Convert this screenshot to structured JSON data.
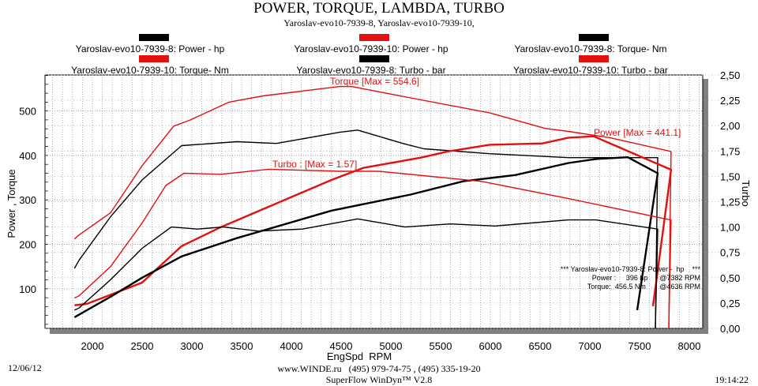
{
  "header": {
    "title": "POWER, TORQUE, LAMBDA, TURBO",
    "subtitle": "Yaroslav-evo10-7939-8, Yaroslav-evo10-7939-10,"
  },
  "legend": [
    {
      "label": "Yaroslav-evo10-7939-8: Power -  hp",
      "color": "#000000"
    },
    {
      "label": "Yaroslav-evo10-7939-10: Power -  hp",
      "color": "#e31010"
    },
    {
      "label": "Yaroslav-evo10-7939-8: Torque-  Nm",
      "color": "#000000"
    },
    {
      "label": "Yaroslav-evo10-7939-10: Torque-  Nm",
      "color": "#e31010"
    },
    {
      "label": "Yaroslav-evo10-7939-8: Turbo - bar",
      "color": "#000000"
    },
    {
      "label": "Yaroslav-evo10-7939-10: Turbo - bar",
      "color": "#e31010"
    }
  ],
  "annotations": {
    "torque_max": "Torque [Max = 554.6]",
    "power_max": "Power  [Max = 441.1]",
    "turbo_max": "Turbo : [Max = 1.57]",
    "info_line1": "*** Yaroslav-evo10-7939-8: Power -  hp    ***",
    "info_line2": "Power :     396 hp      @7382 RPM",
    "info_line3": "Torque:  456.5 Nm       @4636 RPM"
  },
  "footer": {
    "date": "12/06/12",
    "contact": "www.WINDE.ru   (495) 979-74-75 , (495) 335-19-20",
    "software": "SuperFlow WinDyn™ V2.8",
    "time": "19:14:22"
  },
  "chart_data": {
    "type": "line",
    "title": "POWER, TORQUE, LAMBDA, TURBO",
    "xlabel": "EngSpd  RPM",
    "ylabel": "Power , Torque",
    "y2label": "Turbo",
    "xlim": [
      1524,
      8135
    ],
    "ylim": [
      11,
      581
    ],
    "y2lim": [
      0,
      2.5
    ],
    "grid": true,
    "x_ticks": [
      "2000",
      "2500",
      "3000",
      "3500",
      "4000",
      "4500",
      "5000",
      "5500",
      "6000",
      "6500",
      "7000",
      "7500",
      "8000"
    ],
    "y_ticks": [
      "100",
      "200",
      "300",
      "400",
      "500"
    ],
    "y2_ticks": [
      "0,00",
      "0,25",
      "0,50",
      "0,75",
      "1,00",
      "1,25",
      "1,50",
      "1,75",
      "2,00",
      "2,25",
      "2,50"
    ],
    "series": [
      {
        "name": "Yaroslav-evo10-7939-10: Torque-  Nm",
        "color": "#e31010",
        "axis": "left",
        "width": 1.4,
        "points": [
          [
            1820,
            212
          ],
          [
            1865,
            221
          ],
          [
            2183,
            271
          ],
          [
            2500,
            377
          ],
          [
            2817,
            466
          ],
          [
            2976,
            479
          ],
          [
            3373,
            520
          ],
          [
            3714,
            534
          ],
          [
            4484,
            555
          ],
          [
            4603,
            555
          ],
          [
            5302,
            525
          ],
          [
            5992,
            496
          ],
          [
            6548,
            461
          ],
          [
            6786,
            454
          ],
          [
            7200,
            440
          ],
          [
            7817,
            409
          ],
          [
            7794,
            11
          ]
        ]
      },
      {
        "name": "Yaroslav-evo10-7939-8: Torque-  Nm",
        "color": "#000000",
        "axis": "left",
        "width": 1.4,
        "points": [
          [
            1820,
            146
          ],
          [
            1865,
            164
          ],
          [
            2183,
            262
          ],
          [
            2500,
            345
          ],
          [
            2897,
            422
          ],
          [
            3452,
            431
          ],
          [
            3849,
            427
          ],
          [
            4484,
            452
          ],
          [
            4667,
            457
          ],
          [
            5119,
            427
          ],
          [
            5333,
            415
          ],
          [
            5992,
            404
          ],
          [
            6786,
            395
          ],
          [
            7683,
            395
          ],
          [
            7659,
            11
          ]
        ]
      },
      {
        "name": "Yaroslav-evo10-7939-10: Power -  hp",
        "color": "#e31010",
        "axis": "left",
        "width": 2.4,
        "points": [
          [
            1820,
            63
          ],
          [
            1944,
            66
          ],
          [
            2500,
            114
          ],
          [
            2897,
            196
          ],
          [
            3294,
            239
          ],
          [
            4405,
            345
          ],
          [
            4722,
            372
          ],
          [
            5302,
            395
          ],
          [
            5571,
            409
          ],
          [
            5992,
            424
          ],
          [
            6524,
            427
          ],
          [
            6786,
            440
          ],
          [
            7040,
            443
          ],
          [
            7817,
            368
          ],
          [
            7635,
            61
          ]
        ]
      },
      {
        "name": "Yaroslav-evo10-7939-8: Power -  hp",
        "color": "#000000",
        "axis": "left",
        "width": 2.4,
        "points": [
          [
            1820,
            36
          ],
          [
            2183,
            82
          ],
          [
            2500,
            125
          ],
          [
            2897,
            173
          ],
          [
            3452,
            214
          ],
          [
            4405,
            276
          ],
          [
            5198,
            312
          ],
          [
            5730,
            342
          ],
          [
            6254,
            356
          ],
          [
            6786,
            383
          ],
          [
            7063,
            392
          ],
          [
            7382,
            396
          ],
          [
            7683,
            360
          ],
          [
            7476,
            52
          ]
        ]
      },
      {
        "name": "Yaroslav-evo10-7939-10: Turbo - bar",
        "color": "#e31010",
        "axis": "right",
        "width": 1.4,
        "points": [
          [
            1820,
            0.3
          ],
          [
            1865,
            0.32
          ],
          [
            2183,
            0.61
          ],
          [
            2500,
            1.04
          ],
          [
            2738,
            1.41
          ],
          [
            2921,
            1.53
          ],
          [
            3294,
            1.52
          ],
          [
            3770,
            1.57
          ],
          [
            4484,
            1.55
          ],
          [
            4881,
            1.55
          ],
          [
            5913,
            1.45
          ],
          [
            6786,
            1.28
          ],
          [
            7762,
            1.08
          ],
          [
            7817,
            1.07
          ],
          [
            7794,
            0.0
          ]
        ]
      },
      {
        "name": "Yaroslav-evo10-7939-8: Turbo - bar",
        "color": "#000000",
        "axis": "right",
        "width": 1.4,
        "points": [
          [
            1820,
            0.18
          ],
          [
            1865,
            0.2
          ],
          [
            2183,
            0.48
          ],
          [
            2500,
            0.79
          ],
          [
            2794,
            1.0
          ],
          [
            3056,
            0.98
          ],
          [
            3317,
            1.0
          ],
          [
            3667,
            0.96
          ],
          [
            4111,
            0.98
          ],
          [
            4667,
            1.08
          ],
          [
            5143,
            1.0
          ],
          [
            5595,
            1.03
          ],
          [
            6048,
            1.01
          ],
          [
            6786,
            1.07
          ],
          [
            7063,
            1.07
          ],
          [
            7683,
            0.98
          ],
          [
            7659,
            0.0
          ]
        ]
      }
    ]
  }
}
